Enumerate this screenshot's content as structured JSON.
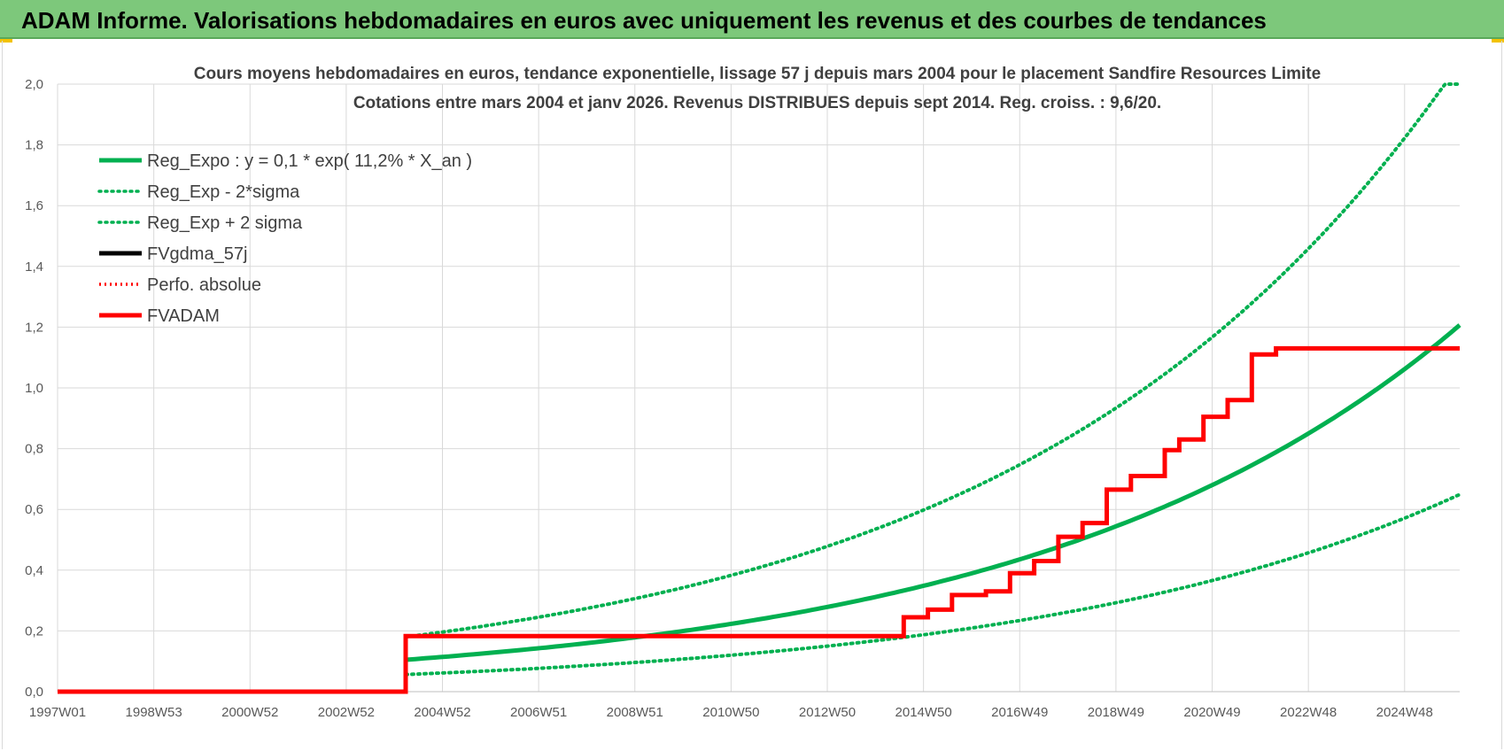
{
  "header": {
    "title": "ADAM Informe. Valorisations hebdomadaires en euros avec uniquement les revenus et des courbes de tendances"
  },
  "chart_data": {
    "type": "line",
    "title_lines": [
      "Cours moyens hebdomadaires en euros, tendance exponentielle, lissage 57 j depuis mars 2004 pour le placement Sandfire Resources Limite",
      "Cotations entre mars 2004 et janv 2026. Revenus DISTRIBUES depuis sept 2014. Reg. croiss. : 9,6/20."
    ],
    "xlabel": "",
    "ylabel": "",
    "x_tick_labels": [
      "1997W01",
      "1998W53",
      "2000W52",
      "2002W52",
      "2004W52",
      "2006W51",
      "2008W51",
      "2010W50",
      "2012W50",
      "2014W50",
      "2016W49",
      "2018W49",
      "2020W49",
      "2022W48",
      "2024W48"
    ],
    "x_range": [
      1997.0,
      2026.0
    ],
    "y_tick_labels": [
      "0,0",
      "0,2",
      "0,4",
      "0,6",
      "0,8",
      "1,0",
      "1,2",
      "1,4",
      "1,6",
      "1,8",
      "2,0"
    ],
    "ylim": [
      0,
      2.0
    ],
    "grid": true,
    "legend_position": "top-left",
    "colors": {
      "green": "#00b050",
      "black": "#000000",
      "red": "#ff0000"
    },
    "series": [
      {
        "name": "Reg_Expo : y = 0,1 * exp( 11,2% *  X_an )",
        "style": "solid-green",
        "model": {
          "a": 0.1,
          "rate": 0.112,
          "shift": 0.0,
          "start": 2004.2,
          "end": 2026.0
        }
      },
      {
        "name": "Reg_Exp - 2*sigma",
        "style": "dotted-green",
        "model": {
          "a": 0.1,
          "rate": 0.112,
          "shift": -0.62,
          "start": 2004.2,
          "end": 2026.0
        }
      },
      {
        "name": "Reg_Exp + 2 sigma",
        "style": "dotted-green",
        "model": {
          "a": 0.1,
          "rate": 0.112,
          "shift": 0.54,
          "start": 2004.2,
          "end": 2026.0,
          "cap": 2.0
        }
      },
      {
        "name": "FVgdma_57j",
        "style": "solid-black",
        "steps": [
          {
            "x": 1997.0,
            "y": 0.0
          },
          {
            "x": 2004.2,
            "y": 0.0
          },
          {
            "x": 2004.2,
            "y": 0.183
          },
          {
            "x": 2014.5,
            "y": 0.183
          },
          {
            "x": 2014.5,
            "y": 0.245
          },
          {
            "x": 2015.0,
            "y": 0.245
          },
          {
            "x": 2015.0,
            "y": 0.27
          },
          {
            "x": 2015.5,
            "y": 0.27
          },
          {
            "x": 2015.5,
            "y": 0.318
          },
          {
            "x": 2016.2,
            "y": 0.318
          },
          {
            "x": 2016.2,
            "y": 0.33
          },
          {
            "x": 2016.7,
            "y": 0.33
          },
          {
            "x": 2016.7,
            "y": 0.39
          },
          {
            "x": 2017.2,
            "y": 0.39
          },
          {
            "x": 2017.2,
            "y": 0.43
          },
          {
            "x": 2017.7,
            "y": 0.43
          },
          {
            "x": 2017.7,
            "y": 0.51
          },
          {
            "x": 2018.2,
            "y": 0.51
          },
          {
            "x": 2018.2,
            "y": 0.555
          },
          {
            "x": 2018.7,
            "y": 0.555
          },
          {
            "x": 2018.7,
            "y": 0.665
          },
          {
            "x": 2019.2,
            "y": 0.665
          },
          {
            "x": 2019.2,
            "y": 0.71
          },
          {
            "x": 2019.9,
            "y": 0.71
          },
          {
            "x": 2019.9,
            "y": 0.795
          },
          {
            "x": 2020.2,
            "y": 0.795
          },
          {
            "x": 2020.2,
            "y": 0.83
          },
          {
            "x": 2020.7,
            "y": 0.83
          },
          {
            "x": 2020.7,
            "y": 0.905
          },
          {
            "x": 2021.2,
            "y": 0.905
          },
          {
            "x": 2021.2,
            "y": 0.96
          },
          {
            "x": 2021.7,
            "y": 0.96
          },
          {
            "x": 2021.7,
            "y": 1.11
          },
          {
            "x": 2022.2,
            "y": 1.11
          },
          {
            "x": 2022.2,
            "y": 1.13
          },
          {
            "x": 2026.0,
            "y": 1.13
          }
        ]
      },
      {
        "name": "Perfo. absolue",
        "style": "dotted-red",
        "values": []
      },
      {
        "name": "FVADAM",
        "style": "solid-red",
        "steps": [
          {
            "x": 1997.0,
            "y": 0.0
          },
          {
            "x": 2004.2,
            "y": 0.0
          },
          {
            "x": 2004.2,
            "y": 0.183
          },
          {
            "x": 2014.5,
            "y": 0.183
          },
          {
            "x": 2014.5,
            "y": 0.245
          },
          {
            "x": 2015.0,
            "y": 0.245
          },
          {
            "x": 2015.0,
            "y": 0.27
          },
          {
            "x": 2015.5,
            "y": 0.27
          },
          {
            "x": 2015.5,
            "y": 0.318
          },
          {
            "x": 2016.2,
            "y": 0.318
          },
          {
            "x": 2016.2,
            "y": 0.33
          },
          {
            "x": 2016.7,
            "y": 0.33
          },
          {
            "x": 2016.7,
            "y": 0.39
          },
          {
            "x": 2017.2,
            "y": 0.39
          },
          {
            "x": 2017.2,
            "y": 0.43
          },
          {
            "x": 2017.7,
            "y": 0.43
          },
          {
            "x": 2017.7,
            "y": 0.51
          },
          {
            "x": 2018.2,
            "y": 0.51
          },
          {
            "x": 2018.2,
            "y": 0.555
          },
          {
            "x": 2018.7,
            "y": 0.555
          },
          {
            "x": 2018.7,
            "y": 0.665
          },
          {
            "x": 2019.2,
            "y": 0.665
          },
          {
            "x": 2019.2,
            "y": 0.71
          },
          {
            "x": 2019.9,
            "y": 0.71
          },
          {
            "x": 2019.9,
            "y": 0.795
          },
          {
            "x": 2020.2,
            "y": 0.795
          },
          {
            "x": 2020.2,
            "y": 0.83
          },
          {
            "x": 2020.7,
            "y": 0.83
          },
          {
            "x": 2020.7,
            "y": 0.905
          },
          {
            "x": 2021.2,
            "y": 0.905
          },
          {
            "x": 2021.2,
            "y": 0.96
          },
          {
            "x": 2021.7,
            "y": 0.96
          },
          {
            "x": 2021.7,
            "y": 1.11
          },
          {
            "x": 2022.2,
            "y": 1.11
          },
          {
            "x": 2022.2,
            "y": 1.13
          },
          {
            "x": 2026.0,
            "y": 1.13
          }
        ]
      }
    ]
  }
}
